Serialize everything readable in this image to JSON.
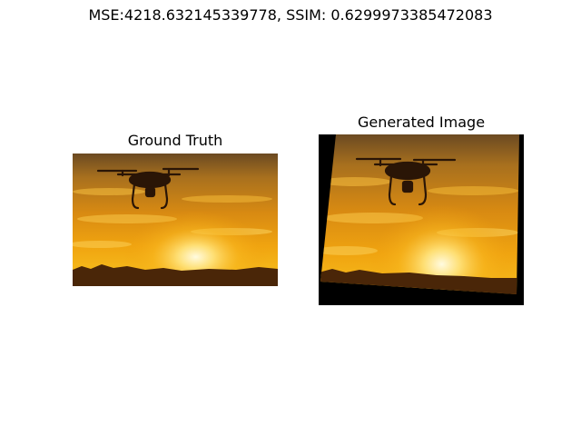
{
  "figure": {
    "suptitle": "MSE:4218.632145339778, SSIM: 0.6299973385472083"
  },
  "panels": [
    {
      "title": "Ground Truth"
    },
    {
      "title": "Generated Image"
    }
  ],
  "colors": {
    "sky_top": "#5a4020",
    "sky_mid": "#d98a10",
    "sun": "#fff6c8",
    "ground": "#3a1e08",
    "drone": "#2a1506",
    "border_fill": "#000000"
  }
}
